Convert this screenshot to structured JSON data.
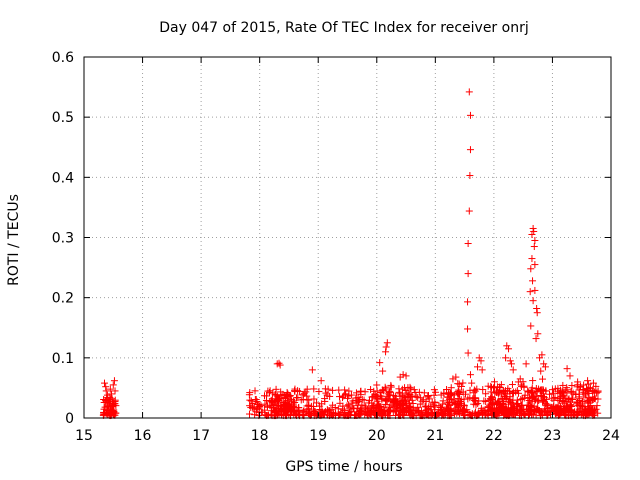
{
  "chart_data": {
    "type": "scatter",
    "title": "Day 047 of 2015, Rate Of TEC Index for receiver onrj",
    "xlabel": "GPS time / hours",
    "ylabel": "ROTI / TECUs",
    "xlim": [
      15,
      24
    ],
    "ylim": [
      0,
      0.6
    ],
    "x_ticks": [
      15,
      16,
      17,
      18,
      19,
      20,
      21,
      22,
      23,
      24
    ],
    "y_ticks": [
      0,
      0.1,
      0.2,
      0.3,
      0.4,
      0.5,
      0.6
    ],
    "x_tick_labels": [
      "15",
      "16",
      "17",
      "18",
      "19",
      "20",
      "21",
      "22",
      "23",
      "24"
    ],
    "y_tick_labels": [
      "0",
      "0.1",
      "0.2",
      "0.3",
      "0.4",
      "0.5",
      "0.6"
    ],
    "grid": true,
    "marker": "+",
    "color": "#ff0000",
    "series": [
      {
        "points": [
          [
            15.35,
            0.058
          ],
          [
            15.37,
            0.052
          ],
          [
            15.38,
            0.045
          ],
          [
            15.4,
            0.038
          ],
          [
            15.41,
            0.03
          ],
          [
            15.43,
            0.025
          ],
          [
            15.45,
            0.048
          ],
          [
            15.47,
            0.04
          ],
          [
            15.48,
            0.032
          ],
          [
            15.5,
            0.055
          ],
          [
            15.52,
            0.062
          ],
          [
            15.53,
            0.045
          ],
          [
            15.36,
            0.018
          ],
          [
            15.39,
            0.012
          ],
          [
            15.42,
            0.02
          ],
          [
            15.46,
            0.015
          ],
          [
            15.49,
            0.022
          ],
          [
            15.51,
            0.01
          ],
          [
            18.3,
            0.09
          ],
          [
            18.35,
            0.088
          ],
          [
            18.33,
            0.091
          ],
          [
            18.9,
            0.08
          ],
          [
            19.05,
            0.062
          ],
          [
            20.05,
            0.092
          ],
          [
            20.1,
            0.078
          ],
          [
            20.15,
            0.11
          ],
          [
            20.18,
            0.125
          ],
          [
            20.16,
            0.118
          ],
          [
            20.4,
            0.068
          ],
          [
            20.45,
            0.072
          ],
          [
            20.5,
            0.07
          ],
          [
            21.3,
            0.065
          ],
          [
            21.35,
            0.068
          ],
          [
            21.58,
            0.542
          ],
          [
            21.6,
            0.503
          ],
          [
            21.6,
            0.446
          ],
          [
            21.59,
            0.403
          ],
          [
            21.58,
            0.344
          ],
          [
            21.56,
            0.29
          ],
          [
            21.56,
            0.24
          ],
          [
            21.55,
            0.193
          ],
          [
            21.55,
            0.148
          ],
          [
            21.56,
            0.108
          ],
          [
            21.6,
            0.072
          ],
          [
            21.62,
            0.058
          ],
          [
            21.75,
            0.1
          ],
          [
            21.78,
            0.095
          ],
          [
            21.8,
            0.08
          ],
          [
            21.72,
            0.085
          ],
          [
            22.2,
            0.1
          ],
          [
            22.22,
            0.12
          ],
          [
            22.25,
            0.115
          ],
          [
            22.28,
            0.095
          ],
          [
            22.3,
            0.09
          ],
          [
            22.33,
            0.08
          ],
          [
            22.45,
            0.065
          ],
          [
            22.55,
            0.09
          ],
          [
            22.65,
            0.305
          ],
          [
            22.67,
            0.315
          ],
          [
            22.68,
            0.31
          ],
          [
            22.7,
            0.295
          ],
          [
            22.69,
            0.285
          ],
          [
            22.65,
            0.265
          ],
          [
            22.7,
            0.255
          ],
          [
            22.63,
            0.248
          ],
          [
            22.66,
            0.228
          ],
          [
            22.62,
            0.21
          ],
          [
            22.7,
            0.212
          ],
          [
            22.67,
            0.195
          ],
          [
            22.73,
            0.182
          ],
          [
            22.74,
            0.175
          ],
          [
            22.63,
            0.153
          ],
          [
            22.75,
            0.14
          ],
          [
            22.72,
            0.132
          ],
          [
            22.78,
            0.1
          ],
          [
            22.82,
            0.105
          ],
          [
            22.85,
            0.09
          ],
          [
            22.88,
            0.085
          ],
          [
            22.8,
            0.078
          ],
          [
            23.25,
            0.082
          ],
          [
            23.3,
            0.07
          ],
          [
            23.6,
            0.062
          ],
          [
            23.7,
            0.058
          ]
        ]
      }
    ]
  }
}
